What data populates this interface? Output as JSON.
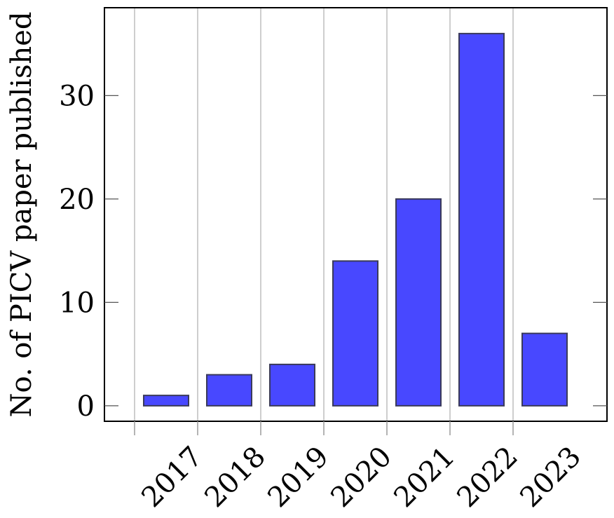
{
  "chart_data": {
    "type": "bar",
    "categories": [
      "2017",
      "2018",
      "2019",
      "2020",
      "2021",
      "2022",
      "2023"
    ],
    "values": [
      1,
      3,
      4,
      14,
      20,
      36,
      7
    ],
    "title": "",
    "xlabel": "",
    "ylabel": "No. of PICV paper published",
    "ylim": [
      -1.5,
      38.5
    ],
    "yticks": [
      0,
      10,
      20,
      30
    ],
    "grid": "vertical",
    "colors": {
      "bar_fill": "#4848ff",
      "bar_stroke": "#3a3a5a",
      "grid": "#bdbdbd",
      "frame": "#000000"
    }
  }
}
